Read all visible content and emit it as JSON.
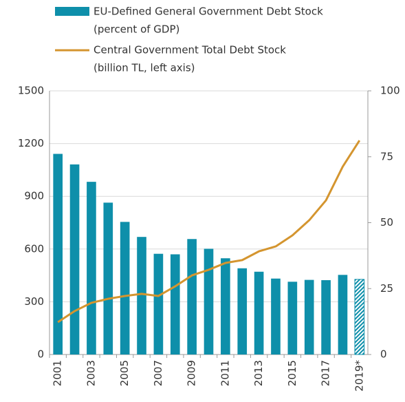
{
  "chart_data": {
    "type": "bar-line",
    "categories": [
      "2001",
      null,
      "2003",
      null,
      "2005",
      null,
      "2007",
      null,
      "2009",
      null,
      "2011",
      null,
      "2013",
      null,
      "2015",
      null,
      "2017",
      null,
      "2019*"
    ],
    "series": [
      {
        "name": "EU-Defined General Government Debt Stock",
        "name_line2": "(percent of GDP)",
        "type": "bar",
        "axis": "y2",
        "color": "#0e8faa",
        "hatch_last": true,
        "values": [
          76.1,
          72.1,
          65.5,
          57.6,
          50.3,
          44.6,
          38.2,
          38.0,
          43.8,
          40.1,
          36.5,
          32.7,
          31.4,
          28.8,
          27.6,
          28.3,
          28.2,
          30.2,
          28.5
        ]
      },
      {
        "name": "Central Government Total Debt Stock",
        "name_line2": "(billion TL, left axis)",
        "type": "line",
        "axis": "y",
        "color": "#d4952f",
        "values": [
          184,
          247,
          294,
          317,
          333,
          345,
          333,
          388,
          450,
          482,
          521,
          537,
          587,
          615,
          678,
          764,
          877,
          1069,
          1218
        ]
      }
    ],
    "ylim": [
      0,
      1500
    ],
    "yticks": [
      0,
      300,
      600,
      900,
      1200,
      1500
    ],
    "y2lim": [
      0,
      100
    ],
    "y2ticks": [
      0,
      25,
      50,
      75,
      100
    ],
    "grid": true
  }
}
